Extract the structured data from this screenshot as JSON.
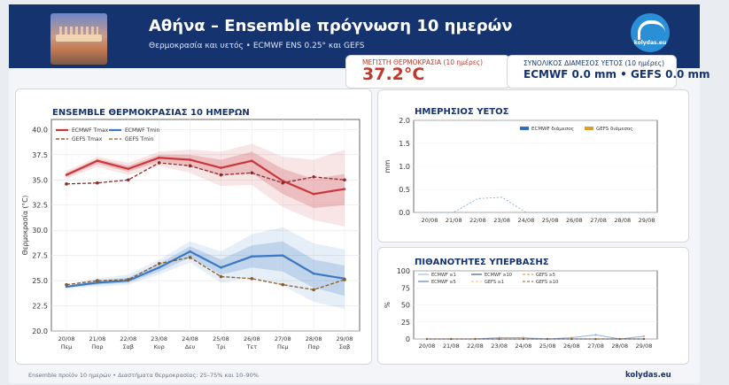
{
  "header": {
    "title": "Αθήνα – Ensemble πρόγνωση 10 ημερών",
    "subtitle": "Θερμοκρασία και υετός • ECMWF ENS 0.25° και GEFS",
    "logo_text": "kolydas.eu"
  },
  "max_temp": {
    "label": "ΜΕΓΙΣΤΗ ΘΕΡΜΟΚΡΑΣΙΑ (10 ημέρες)",
    "value": "37.2°C"
  },
  "total_rain": {
    "label": "ΣΥΝΟΛΙΚΟΣ ΔΙΑΜΕΣΟΣ ΥΕΤΟΣ (10 ημέρες)",
    "value": "ECMWF 0.0 mm  •  GEFS 0.0 mm"
  },
  "footer": {
    "note": "Ensemble προϊόν 10 ημερών • Διαστήματα θερμοκρασίας: 25–75% και 10–90%",
    "brand": "kolydas.eu"
  },
  "colors": {
    "ecmwf_tmax": "#c9363c",
    "gefs_tmax": "#8b2a2a",
    "ecmwf_tmin": "#3a79c2",
    "gefs_tmin": "#8a5a2b",
    "header": "#15336f"
  },
  "chart_data": [
    {
      "type": "line",
      "title": "ENSEMBLE ΘΕΡΜΟΚΡΑΣΙΑΣ 10 ΗΜΕΡΩΝ",
      "xlabel": "",
      "ylabel": "Θερμοκρασία (°C)",
      "ylim": [
        20.0,
        41.0
      ],
      "yticks": [
        "20.0",
        "22.5",
        "25.0",
        "27.5",
        "30.0",
        "32.5",
        "35.0",
        "37.5",
        "40.0"
      ],
      "x": [
        "20/08",
        "21/08",
        "22/08",
        "23/08",
        "24/08",
        "25/08",
        "26/08",
        "27/08",
        "28/08",
        "29/08"
      ],
      "x_days": [
        "Πεμ",
        "Παρ",
        "Σαβ",
        "Κυρ",
        "Δευ",
        "Τρι",
        "Τετ",
        "Πεμ",
        "Παρ",
        "Σαβ"
      ],
      "grid": true,
      "legend": "top-left",
      "series": [
        {
          "name": "ECMWF Tmax",
          "values": [
            35.5,
            36.9,
            36.1,
            37.2,
            37.0,
            36.2,
            36.9,
            34.9,
            33.6,
            34.1
          ],
          "p25": [
            35.3,
            36.6,
            35.8,
            36.8,
            36.4,
            35.4,
            35.7,
            33.6,
            32.2,
            32.5
          ],
          "p75": [
            35.7,
            37.1,
            36.4,
            37.5,
            37.5,
            37.0,
            37.8,
            36.1,
            35.1,
            35.6
          ],
          "p10": [
            35.1,
            36.3,
            35.5,
            36.4,
            35.7,
            34.4,
            34.5,
            32.3,
            31.0,
            30.4
          ],
          "p90": [
            35.9,
            37.3,
            36.7,
            37.8,
            38.0,
            37.8,
            38.6,
            37.3,
            37.0,
            38.0
          ]
        },
        {
          "name": "GEFS Tmax",
          "values": [
            34.6,
            34.7,
            35.0,
            36.7,
            36.4,
            35.5,
            35.7,
            34.7,
            35.3,
            35.0
          ]
        },
        {
          "name": "ECMWF Tmin",
          "values": [
            24.4,
            24.8,
            25.0,
            26.3,
            27.9,
            26.3,
            27.4,
            27.5,
            25.7,
            25.2
          ],
          "p25": [
            24.3,
            24.6,
            24.8,
            25.9,
            27.3,
            25.6,
            26.3,
            25.9,
            24.3,
            23.5
          ],
          "p75": [
            24.5,
            25.0,
            25.3,
            26.7,
            28.4,
            27.1,
            28.5,
            28.9,
            27.1,
            26.5
          ],
          "p10": [
            24.2,
            24.4,
            24.6,
            25.6,
            26.8,
            24.8,
            25.3,
            24.5,
            22.9,
            22.2
          ],
          "p90": [
            24.6,
            25.2,
            25.6,
            27.1,
            28.9,
            27.9,
            29.6,
            30.3,
            28.7,
            28.1
          ]
        },
        {
          "name": "GEFS Tmin",
          "values": [
            24.6,
            25.0,
            25.1,
            26.7,
            27.3,
            25.4,
            25.2,
            24.6,
            24.1,
            25.1
          ]
        }
      ]
    },
    {
      "type": "bar",
      "title": "ΗΜΕΡΗΣΙΟΣ ΥΕΤΟΣ",
      "ylabel": "mm",
      "ylim": [
        0.0,
        2.0
      ],
      "yticks": [
        "0.0",
        "0.5",
        "1.0",
        "1.5",
        "2.0"
      ],
      "categories": [
        "20/08",
        "21/08",
        "22/08",
        "23/08",
        "24/08",
        "25/08",
        "26/08",
        "27/08",
        "28/08",
        "29/08"
      ],
      "legend": "top-right",
      "series": [
        {
          "name": "ECMWF διάμεσος",
          "values": [
            0,
            0,
            0,
            0,
            0,
            0,
            0,
            0,
            0,
            0
          ]
        },
        {
          "name": "GEFS διάμεσος",
          "values": [
            0,
            0,
            0,
            0,
            0,
            0,
            0,
            0,
            0,
            0
          ]
        }
      ],
      "spread_line": [
        0,
        0,
        0.3,
        0.33,
        0,
        0,
        0,
        0,
        0,
        0
      ]
    },
    {
      "type": "line",
      "title": "ΠΙΘΑΝΟΤΗΤΕΣ ΥΠΕΡΒΑΣΗΣ",
      "ylabel": "%",
      "ylim": [
        0,
        100
      ],
      "yticks": [
        "0",
        "25",
        "50",
        "75",
        "100"
      ],
      "x": [
        "20/08",
        "21/08",
        "22/08",
        "23/08",
        "24/08",
        "25/08",
        "26/08",
        "27/08",
        "28/08",
        "29/08"
      ],
      "legend": "top-left",
      "series": [
        {
          "name": "ECMWF ≥1",
          "values": [
            0,
            0,
            0,
            2,
            2,
            0,
            2,
            6,
            0,
            4
          ]
        },
        {
          "name": "ECMWF ≥5",
          "values": [
            0,
            0,
            0,
            0,
            0,
            0,
            0,
            0,
            0,
            0
          ]
        },
        {
          "name": "ECMWF ≥10",
          "values": [
            0,
            0,
            0,
            0,
            0,
            0,
            0,
            0,
            0,
            0
          ]
        },
        {
          "name": "GEFS ≥1",
          "values": [
            0,
            0,
            0,
            0,
            0,
            0,
            0,
            0,
            0,
            0
          ]
        },
        {
          "name": "GEFS ≥5",
          "values": [
            0,
            0,
            0,
            0,
            0,
            0,
            0,
            0,
            0,
            0
          ]
        },
        {
          "name": "GEFS ≥10",
          "values": [
            0,
            0,
            0,
            0,
            0,
            0,
            0,
            0,
            0,
            0
          ]
        }
      ]
    }
  ]
}
